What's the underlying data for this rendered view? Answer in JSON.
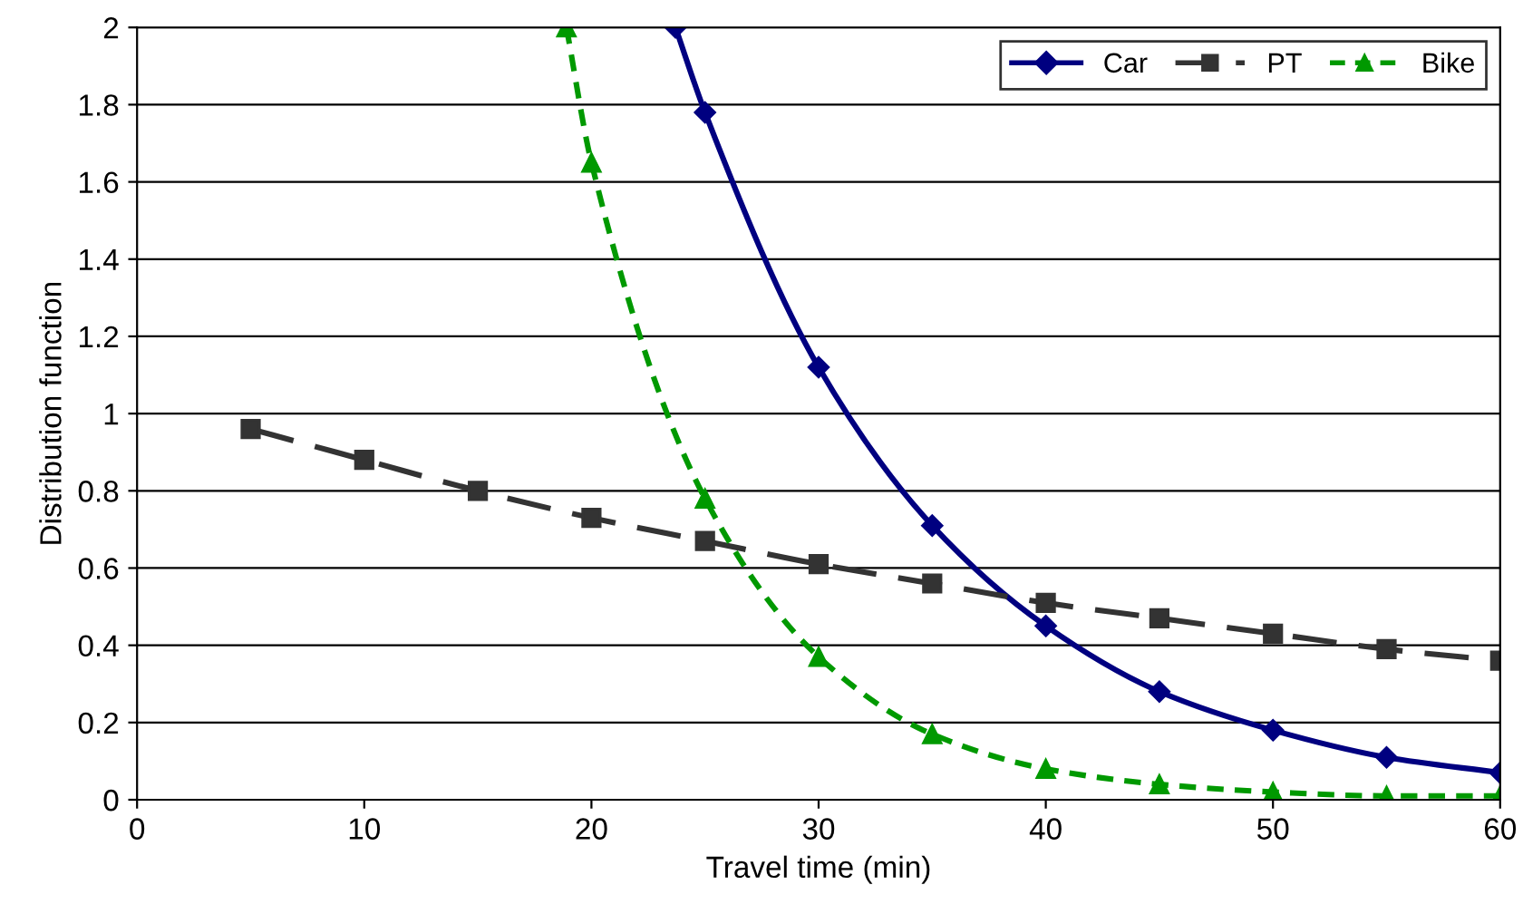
{
  "chart_data": {
    "type": "line",
    "xlabel": "Travel time (min)",
    "ylabel": "Distribution function",
    "xlim": [
      0,
      60
    ],
    "xticks": [
      0,
      10,
      20,
      30,
      40,
      50,
      60
    ],
    "ylim": [
      0,
      2
    ],
    "yticks": [
      0,
      0.2,
      0.4,
      0.6,
      0.8,
      1,
      1.2,
      1.4,
      1.6,
      1.8,
      2
    ],
    "grid": "y",
    "legend": "top right",
    "series": [
      {
        "name": "Car",
        "color": "#000080",
        "marker": "diamond",
        "line_style": "solid",
        "x": [
          23.7,
          25,
          30,
          35,
          40,
          45,
          50,
          55,
          60
        ],
        "values": [
          2.0,
          1.78,
          1.12,
          0.71,
          0.45,
          0.28,
          0.18,
          0.11,
          0.07
        ]
      },
      {
        "name": "PT",
        "color": "#333333",
        "marker": "square",
        "line_style": "dashed",
        "x": [
          5,
          10,
          15,
          20,
          25,
          30,
          35,
          40,
          45,
          50,
          55,
          60
        ],
        "values": [
          0.96,
          0.88,
          0.8,
          0.73,
          0.67,
          0.61,
          0.56,
          0.51,
          0.47,
          0.43,
          0.39,
          0.36
        ]
      },
      {
        "name": "Bike",
        "color": "#009900",
        "marker": "triangle",
        "line_style": "dotted",
        "x": [
          18.9,
          20,
          25,
          30,
          35,
          40,
          45,
          50,
          55,
          60
        ],
        "values": [
          2.0,
          1.65,
          0.78,
          0.37,
          0.17,
          0.08,
          0.04,
          0.02,
          0.01,
          0.01
        ]
      }
    ]
  }
}
